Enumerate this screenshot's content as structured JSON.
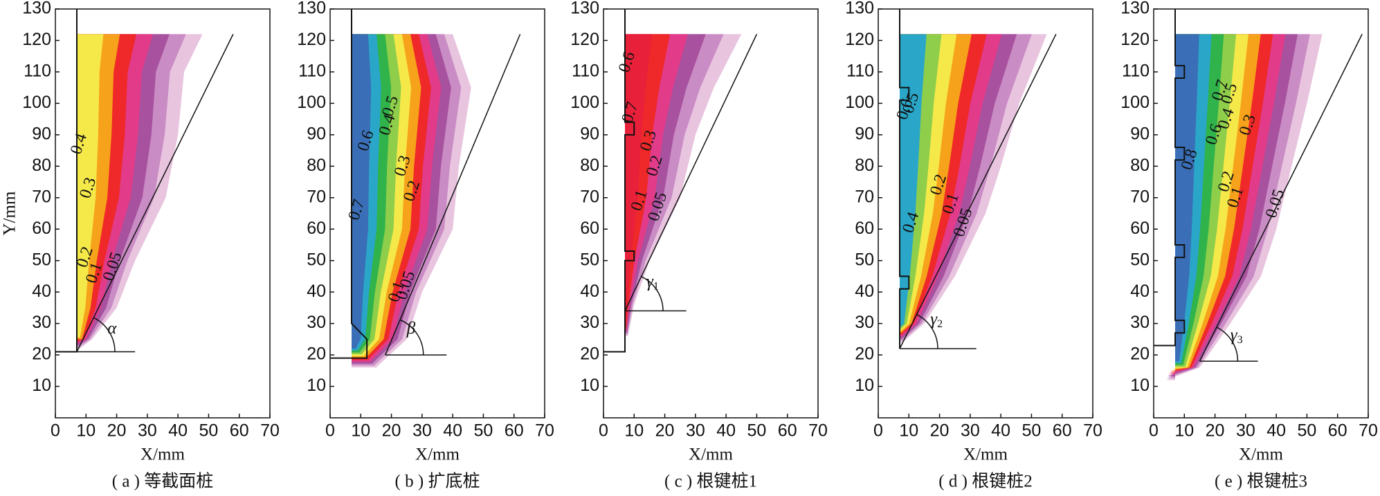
{
  "chart_data": [
    {
      "type": "contour",
      "caption": "( a ) 等截面桩",
      "x_label": "X/mm",
      "y_label": "Y/mm",
      "xlim": [
        0,
        70
      ],
      "ylim": [
        0,
        130
      ],
      "xticks": [
        0,
        10,
        20,
        30,
        40,
        50,
        60,
        70
      ],
      "yticks": [
        10,
        20,
        30,
        40,
        50,
        60,
        70,
        80,
        90,
        100,
        110,
        120,
        130
      ],
      "annotation": {
        "symbol": "α"
      },
      "contour_labels": [
        0.4,
        0.3,
        0.2,
        0.1,
        0.05
      ],
      "contour_colors": [
        "#e8c4df",
        "#c98cc4",
        "#a8519e",
        "#e23b8a",
        "#ef2929",
        "#f7a21b",
        "#f5e94a"
      ]
    },
    {
      "type": "contour",
      "caption": "( b ) 扩底桩",
      "x_label": "X/mm",
      "xlim": [
        0,
        70
      ],
      "ylim": [
        0,
        130
      ],
      "xticks": [
        0,
        10,
        20,
        30,
        40,
        50,
        60,
        70
      ],
      "yticks": [
        10,
        20,
        30,
        40,
        50,
        60,
        70,
        80,
        90,
        100,
        110,
        120,
        130
      ],
      "annotation": {
        "symbol": "β"
      },
      "contour_labels": [
        0.7,
        0.6,
        0.5,
        0.4,
        0.3,
        0.2,
        0.1,
        0.05
      ],
      "contour_colors": [
        "#e8c4df",
        "#c98cc4",
        "#a8519e",
        "#e23b8a",
        "#ef2929",
        "#f7a21b",
        "#f5e94a",
        "#8fce4a",
        "#2fb34a",
        "#2aa6c8",
        "#3a6fb7"
      ]
    },
    {
      "type": "contour",
      "caption": "( c ) 根键桩1",
      "x_label": "X/mm",
      "xlim": [
        0,
        70
      ],
      "ylim": [
        0,
        130
      ],
      "xticks": [
        0,
        10,
        20,
        30,
        40,
        50,
        60,
        70
      ],
      "yticks": [
        10,
        20,
        30,
        40,
        50,
        60,
        70,
        80,
        90,
        100,
        110,
        120,
        130
      ],
      "annotation": {
        "symbol": "γ",
        "subscript": "1"
      },
      "contour_labels": [
        0.6,
        0.7,
        0.3,
        0.2,
        0.1,
        0.05
      ],
      "contour_colors": [
        "#e8c4df",
        "#c98cc4",
        "#a8519e",
        "#e23b8a",
        "#ef2929",
        "#e8203a"
      ]
    },
    {
      "type": "contour",
      "caption": "( d ) 根键桩2",
      "x_label": "X/mm",
      "xlim": [
        0,
        70
      ],
      "ylim": [
        0,
        130
      ],
      "xticks": [
        0,
        10,
        20,
        30,
        40,
        50,
        60,
        70
      ],
      "yticks": [
        10,
        20,
        30,
        40,
        50,
        60,
        70,
        80,
        90,
        100,
        110,
        120,
        130
      ],
      "annotation": {
        "symbol": "γ",
        "subscript": "2"
      },
      "contour_labels": [
        0.6,
        0.5,
        0.4,
        0.2,
        0.1,
        0.05
      ],
      "contour_colors": [
        "#e8c4df",
        "#c98cc4",
        "#a8519e",
        "#e23b8a",
        "#ef2929",
        "#f7a21b",
        "#f5e94a",
        "#8fce4a",
        "#2aa6c8"
      ]
    },
    {
      "type": "contour",
      "caption": "( e ) 根键桩3",
      "x_label": "X/mm",
      "xlim": [
        0,
        70
      ],
      "ylim": [
        0,
        130
      ],
      "xticks": [
        0,
        10,
        20,
        30,
        40,
        50,
        60,
        70
      ],
      "yticks": [
        10,
        20,
        30,
        40,
        50,
        60,
        70,
        80,
        90,
        100,
        110,
        120,
        130
      ],
      "annotation": {
        "symbol": "γ",
        "subscript": "3"
      },
      "contour_labels": [
        0.6,
        0.7,
        0.5,
        0.4,
        0.3,
        0.8,
        0.2,
        0.1,
        0.05
      ],
      "contour_colors": [
        "#e8c4df",
        "#c98cc4",
        "#a8519e",
        "#e23b8a",
        "#ef2929",
        "#f7a21b",
        "#f5e94a",
        "#8fce4a",
        "#2fb34a",
        "#2aa6c8",
        "#3a6fb7"
      ]
    }
  ]
}
